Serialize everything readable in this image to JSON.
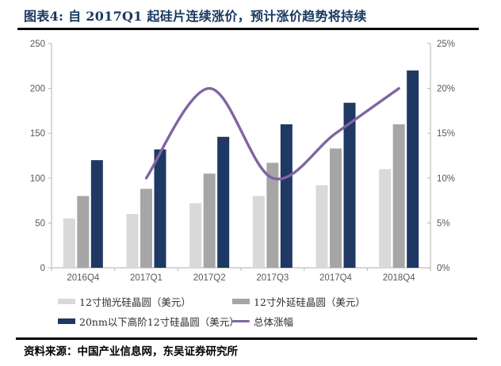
{
  "title": "图表4: 自 2017Q1 起硅片连续涨价，预计涨价趋势将持续",
  "source": "资料来源：中国产业信息网，东吴证券研究所",
  "chart_data": {
    "type": "bar",
    "subtype": "grouped-bar-with-line-overlay-dual-axis",
    "title": "图表4: 自 2017Q1 起硅片连续涨价，预计涨价趋势将持续",
    "categories": [
      "2016Q4",
      "2017Q1",
      "2017Q2",
      "2017Q3",
      "2017Q4",
      "2018Q4"
    ],
    "series": [
      {
        "name": "12寸抛光硅晶圆（美元）",
        "type": "bar",
        "axis": "left",
        "color": "#d9d9d9",
        "values": [
          55,
          60,
          72,
          80,
          92,
          110
        ]
      },
      {
        "name": "12寸外延硅晶圆（美元）",
        "type": "bar",
        "axis": "left",
        "color": "#a6a6a6",
        "values": [
          80,
          88,
          105,
          117,
          133,
          160
        ]
      },
      {
        "name": "20nm以下高阶12寸硅晶圆（美元）",
        "type": "bar",
        "axis": "left",
        "color": "#1f3864",
        "values": [
          120,
          132,
          146,
          160,
          184,
          220
        ]
      },
      {
        "name": "总体涨幅",
        "type": "line",
        "axis": "right",
        "color": "#8064a2",
        "values": [
          null,
          10,
          20,
          10,
          15,
          20
        ]
      }
    ],
    "left_axis": {
      "min": 0,
      "max": 250,
      "tick_values": [
        0,
        50,
        100,
        150,
        200,
        250
      ],
      "tick_labels": [
        "0",
        "50",
        "100",
        "150",
        "200",
        "250"
      ]
    },
    "right_axis": {
      "min": 0,
      "max": 25,
      "tick_values": [
        0,
        5,
        10,
        15,
        20,
        25
      ],
      "tick_labels": [
        "0%",
        "5%",
        "10%",
        "15%",
        "20%",
        "25%"
      ]
    },
    "grid": false,
    "legend_position": "bottom",
    "colors": {
      "axis_line": "#bfbfbf",
      "tick_text": "#595959",
      "title_text": "#17375e",
      "rule": "#000000",
      "background": "#ffffff"
    }
  }
}
